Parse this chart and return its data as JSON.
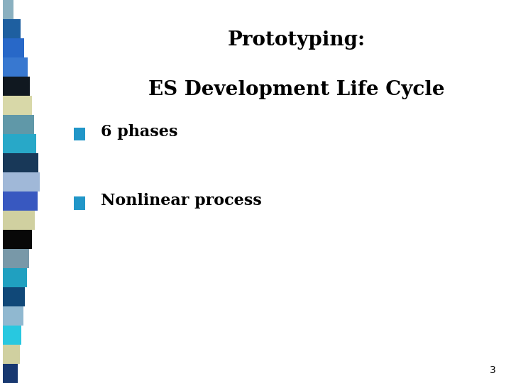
{
  "title_line1": "Prototyping:",
  "title_line2": "ES Development Life Cycle",
  "bullet_color": "#2196C8",
  "bullet_items": [
    "6 phases",
    "Nonlinear process"
  ],
  "slide_number": "3",
  "background_color": "#ffffff",
  "text_color": "#000000",
  "title_fontsize": 20,
  "bullet_fontsize": 16,
  "slide_num_fontsize": 10,
  "strip_colors": [
    "#8ab0c0",
    "#1e5fa0",
    "#2868c8",
    "#3878d0",
    "#101820",
    "#d8d8a8",
    "#6098a8",
    "#28a8c8",
    "#183858",
    "#a0b8d8",
    "#3858c0",
    "#d0d0a0",
    "#080808",
    "#7898a8",
    "#20a0c0",
    "#104878",
    "#90b8d0",
    "#28c8e0",
    "#d0d0a0",
    "#183870"
  ]
}
